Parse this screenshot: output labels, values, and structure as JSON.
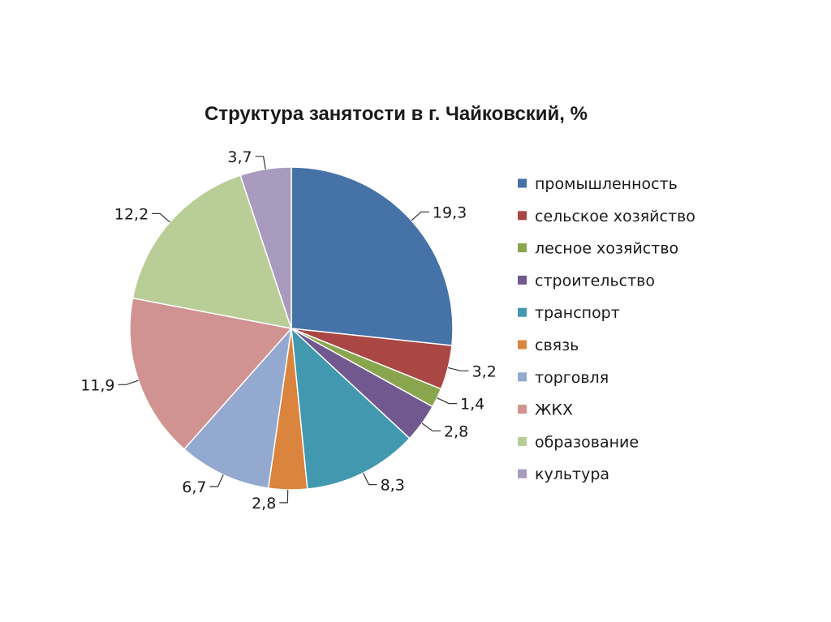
{
  "chart_data": {
    "type": "pie",
    "title": "Структура занятости в г. Чайковский, %",
    "slices": [
      {
        "label": "промышленность",
        "value": 19.3,
        "display": "19,3",
        "color": "#4572A7"
      },
      {
        "label": "сельское хозяйство",
        "value": 3.2,
        "display": "3,2",
        "color": "#AA4643"
      },
      {
        "label": "лесное хозяйство",
        "value": 1.4,
        "display": "1,4",
        "color": "#89A54E"
      },
      {
        "label": "строительство",
        "value": 2.8,
        "display": "2,8",
        "color": "#71588F"
      },
      {
        "label": "транспорт",
        "value": 8.3,
        "display": "8,3",
        "color": "#4198AF"
      },
      {
        "label": "связь",
        "value": 2.8,
        "display": "2,8",
        "color": "#DB843D"
      },
      {
        "label": "торговля",
        "value": 6.7,
        "display": "6,7",
        "color": "#93A9CF"
      },
      {
        "label": "ЖКХ",
        "value": 11.9,
        "display": "11,9",
        "color": "#D19392"
      },
      {
        "label": "образование",
        "value": 12.2,
        "display": "12,2",
        "color": "#B9CD96"
      },
      {
        "label": "культура",
        "value": 3.7,
        "display": "3,7",
        "color": "#A99BBD"
      }
    ],
    "legend_position": "right",
    "start_angle": "12 o'clock",
    "direction": "clockwise"
  }
}
